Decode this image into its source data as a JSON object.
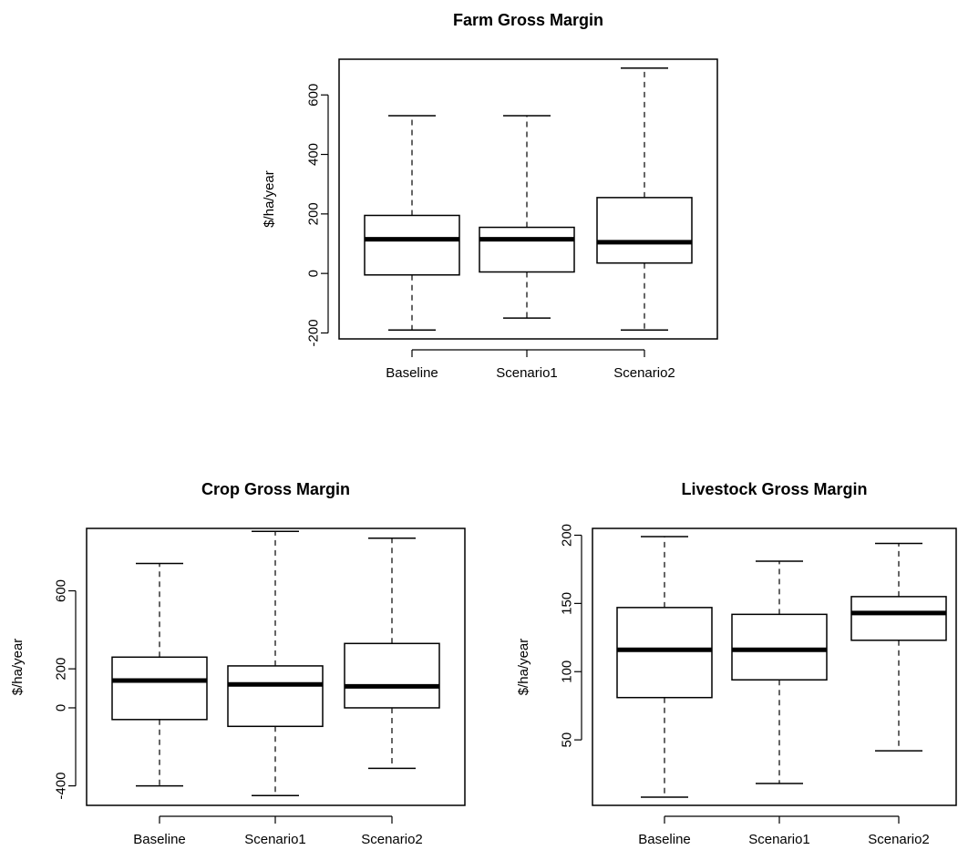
{
  "chart_data": [
    {
      "type": "boxplot",
      "title": "Farm Gross Margin",
      "ylabel": "$/ha/year",
      "xlabel": "",
      "ylim": [
        -220,
        720
      ],
      "yticks": [
        -200,
        0,
        200,
        400,
        600
      ],
      "categories": [
        "Baseline",
        "Scenario1",
        "Scenario2"
      ],
      "boxes": [
        {
          "min": -190,
          "q1": -5,
          "median": 115,
          "q3": 195,
          "max": 530
        },
        {
          "min": -150,
          "q1": 5,
          "median": 115,
          "q3": 155,
          "max": 530
        },
        {
          "min": -190,
          "q1": 35,
          "median": 105,
          "q3": 255,
          "max": 690
        }
      ]
    },
    {
      "type": "boxplot",
      "title": "Crop Gross Margin",
      "ylabel": "$/ha/year",
      "xlabel": "",
      "ylim": [
        -500,
        920
      ],
      "yticks": [
        -400,
        0,
        200,
        600
      ],
      "categories": [
        "Baseline",
        "Scenario1",
        "Scenario2"
      ],
      "boxes": [
        {
          "min": -400,
          "q1": -60,
          "median": 140,
          "q3": 260,
          "max": 740
        },
        {
          "min": -450,
          "q1": -95,
          "median": 120,
          "q3": 215,
          "max": 905
        },
        {
          "min": -310,
          "q1": 0,
          "median": 110,
          "q3": 330,
          "max": 870
        }
      ]
    },
    {
      "type": "boxplot",
      "title": "Livestock Gross Margin",
      "ylabel": "$/ha/year",
      "xlabel": "",
      "ylim": [
        2,
        205
      ],
      "yticks": [
        50,
        100,
        150,
        200
      ],
      "categories": [
        "Baseline",
        "Scenario1",
        "Scenario2"
      ],
      "boxes": [
        {
          "min": 8,
          "q1": 81,
          "median": 116,
          "q3": 147,
          "max": 199
        },
        {
          "min": 18,
          "q1": 94,
          "median": 116,
          "q3": 142,
          "max": 181
        },
        {
          "min": 42,
          "q1": 123,
          "median": 143,
          "q3": 155,
          "max": 194
        }
      ]
    }
  ]
}
